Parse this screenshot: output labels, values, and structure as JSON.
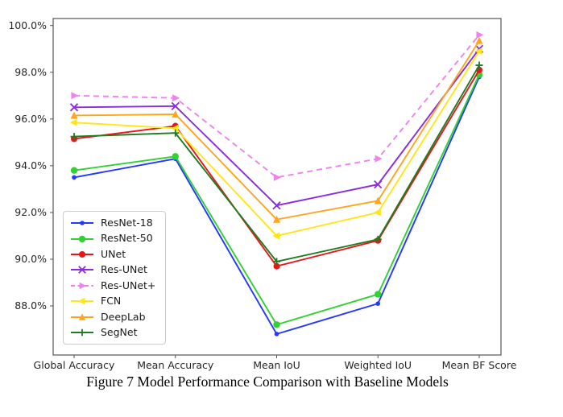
{
  "caption": "Figure 7 Model Performance Comparison with Baseline Models",
  "chart_data": {
    "type": "line",
    "title": "",
    "xlabel": "",
    "ylabel": "",
    "grid": false,
    "legend_position": "center-left",
    "categories": [
      "Global Accuracy",
      "Mean Accuracy",
      "Mean IoU",
      "Weighted IoU",
      "Mean BF Score"
    ],
    "y_ticks": [
      "88.0%",
      "90.0%",
      "92.0%",
      "94.0%",
      "96.0%",
      "98.0%",
      "100.0%"
    ],
    "y_tick_values": [
      88,
      90,
      92,
      94,
      96,
      98,
      100
    ],
    "ylim": [
      85.9,
      100.3
    ],
    "series": [
      {
        "name": "ResNet-18",
        "color": "#2438ff",
        "marker": "circle",
        "marker_size": 2.8,
        "dash": "solid",
        "values": [
          93.5,
          94.3,
          86.8,
          88.1,
          97.8
        ]
      },
      {
        "name": "ResNet-50",
        "color": "#32d132",
        "marker": "circle",
        "marker_size": 4.2,
        "dash": "solid",
        "values": [
          93.8,
          94.4,
          87.2,
          88.5,
          97.9
        ]
      },
      {
        "name": "UNet",
        "color": "#e81519",
        "marker": "circle",
        "marker_size": 4.0,
        "dash": "solid",
        "values": [
          95.15,
          95.7,
          89.7,
          90.8,
          98.1
        ]
      },
      {
        "name": "Res-UNet",
        "color": "#8a2be2",
        "marker": "x",
        "marker_size": 4.5,
        "dash": "solid",
        "values": [
          96.5,
          96.55,
          92.3,
          93.2,
          99.0
        ]
      },
      {
        "name": "Res-UNet+",
        "color": "#ee82ee",
        "marker": "triangle-right",
        "marker_size": 4.5,
        "dash": "dashed",
        "values": [
          97.0,
          96.9,
          93.5,
          94.3,
          99.6
        ]
      },
      {
        "name": "FCN",
        "color": "#ffe616",
        "marker": "triangle-left",
        "marker_size": 4.5,
        "dash": "solid",
        "values": [
          95.85,
          95.6,
          91.0,
          92.0,
          98.9
        ]
      },
      {
        "name": "DeepLab",
        "color": "#ffa51e",
        "marker": "triangle-up",
        "marker_size": 4.5,
        "dash": "solid",
        "values": [
          96.15,
          96.2,
          91.7,
          92.5,
          99.35
        ]
      },
      {
        "name": "SegNet",
        "color": "#1e7d1e",
        "marker": "plus",
        "marker_size": 4.5,
        "dash": "solid",
        "values": [
          95.25,
          95.4,
          89.9,
          90.85,
          98.3
        ]
      }
    ]
  }
}
